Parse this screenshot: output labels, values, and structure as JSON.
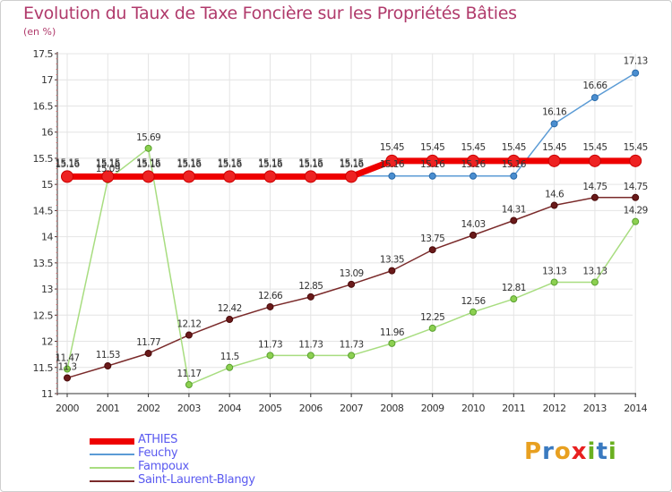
{
  "header": {
    "title": "Evolution du Taux de Taxe Foncière sur les Propriétés Bâties",
    "unit": "(en %)"
  },
  "logo": {
    "text": "Proxiti",
    "letters": [
      "P",
      "r",
      "o",
      "x",
      "i",
      "t",
      "i"
    ]
  },
  "colors": {
    "title": "#b03a6b",
    "legend_text": "#5a5af0",
    "logo": [
      "#e8a020",
      "#3a7ac0",
      "#e8a020",
      "#e82020",
      "#6ab020",
      "#3a7ac0",
      "#6ab020"
    ]
  },
  "chart_data": {
    "type": "line",
    "title": "Evolution du Taux de Taxe Foncière sur les Propriétés Bâties",
    "ylabel": "(en %)",
    "xlabel": "",
    "ylim": [
      11,
      17.5
    ],
    "yticks": [
      "11",
      "11.5",
      "12",
      "12.5",
      "13",
      "13.5",
      "14",
      "14.5",
      "15",
      "15.5",
      "16",
      "16.5",
      "17",
      "17.5"
    ],
    "x": [
      "2000",
      "2001",
      "2002",
      "2003",
      "2004",
      "2005",
      "2006",
      "2007",
      "2008",
      "2009",
      "2010",
      "2011",
      "2012",
      "2013",
      "2014"
    ],
    "legend_position": "bottom-left",
    "series": [
      {
        "name": "ATHIES",
        "color": "#ee0000",
        "marker_fill": "#ee2222",
        "marker_stroke": "#cc0000",
        "width": 7,
        "values": [
          15.15,
          15.15,
          15.15,
          15.15,
          15.15,
          15.15,
          15.15,
          15.15,
          15.45,
          15.45,
          15.45,
          15.45,
          15.45,
          15.45,
          15.45
        ],
        "labels": [
          "15.15",
          "15.15",
          "15.15",
          "15.15",
          "15.15",
          "15.15",
          "15.15",
          "15.15",
          "15.45",
          "15.45",
          "15.45",
          "15.45",
          "15.45",
          "15.45",
          "15.45"
        ]
      },
      {
        "name": "Feuchy",
        "color": "#5b9bd5",
        "marker_fill": "#4a8ed0",
        "marker_stroke": "#2a6aa8",
        "width": 1.5,
        "values": [
          15.16,
          15.16,
          15.16,
          15.16,
          15.16,
          15.16,
          15.16,
          15.16,
          15.16,
          15.16,
          15.16,
          15.16,
          16.16,
          16.66,
          17.13
        ],
        "labels": [
          "15.16",
          "15.16",
          "15.16",
          "15.16",
          "15.16",
          "15.16",
          "15.16",
          "15.16",
          "15.16",
          "15.16",
          "15.16",
          "15.16",
          "16.16",
          "16.66",
          "17.13"
        ]
      },
      {
        "name": "Fampoux",
        "color": "#a8dd80",
        "marker_fill": "#8cd050",
        "marker_stroke": "#5aa030",
        "width": 1.5,
        "values": [
          11.47,
          15.09,
          15.69,
          11.17,
          11.5,
          11.73,
          11.73,
          11.73,
          11.96,
          12.25,
          12.56,
          12.81,
          13.13,
          13.13,
          14.29
        ],
        "labels": [
          "11.47",
          "15.09",
          "15.69",
          "11.17",
          "11.5",
          "11.73",
          "11.73",
          "11.73",
          "11.96",
          "12.25",
          "12.56",
          "12.81",
          "13.13",
          "13.13",
          "14.29"
        ]
      },
      {
        "name": "Saint-Laurent-Blangy",
        "color": "#7a2a2a",
        "marker_fill": "#6a1a1a",
        "marker_stroke": "#4a0a0a",
        "width": 1.5,
        "values": [
          11.3,
          11.53,
          11.77,
          12.12,
          12.42,
          12.66,
          12.85,
          13.09,
          13.35,
          13.75,
          14.03,
          14.31,
          14.6,
          14.75,
          14.75
        ],
        "labels": [
          "11.3",
          "11.53",
          "11.77",
          "12.12",
          "12.42",
          "12.66",
          "12.85",
          "13.09",
          "13.35",
          "13.75",
          "14.03",
          "14.31",
          "14.6",
          "14.75",
          "14.75"
        ]
      }
    ]
  }
}
